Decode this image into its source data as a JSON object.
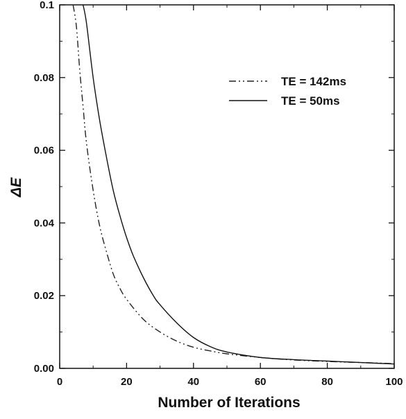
{
  "chart_data": {
    "type": "line",
    "title": "",
    "xlabel": "Number of Iterations",
    "ylabel": "ΔE",
    "xlim": [
      0,
      100
    ],
    "ylim": [
      0,
      0.1
    ],
    "xticks": [
      0,
      20,
      40,
      60,
      80,
      100
    ],
    "xtick_labels": [
      "0",
      "20",
      "40",
      "60",
      "80",
      "100"
    ],
    "yticks": [
      0,
      0.02,
      0.04,
      0.06,
      0.08,
      0.1
    ],
    "ytick_labels": [
      "0.00",
      "0.02",
      "0.04",
      "0.06",
      "0.08",
      "0.1"
    ],
    "grid": false,
    "legend_position": "top-right",
    "series": [
      {
        "name": "TE = 142ms",
        "style": "dash-dot",
        "color": "#222222",
        "x": [
          4,
          5,
          6,
          7,
          8,
          10,
          12,
          14,
          16,
          18,
          20,
          25,
          30,
          35,
          40,
          45,
          50,
          60,
          70,
          80,
          90,
          100
        ],
        "y": [
          0.1,
          0.094,
          0.082,
          0.072,
          0.062,
          0.049,
          0.039,
          0.032,
          0.026,
          0.022,
          0.019,
          0.0135,
          0.01,
          0.0075,
          0.0058,
          0.0048,
          0.004,
          0.003,
          0.0023,
          0.0019,
          0.0016,
          0.0013
        ]
      },
      {
        "name": "TE = 50ms",
        "style": "solid",
        "color": "#111111",
        "x": [
          7,
          8,
          10,
          12,
          14,
          16,
          18,
          20,
          22,
          25,
          28,
          30,
          35,
          40,
          45,
          50,
          60,
          70,
          80,
          90,
          100
        ],
        "y": [
          0.1,
          0.095,
          0.08,
          0.068,
          0.058,
          0.049,
          0.042,
          0.036,
          0.031,
          0.025,
          0.02,
          0.0175,
          0.0125,
          0.0085,
          0.006,
          0.0045,
          0.003,
          0.0024,
          0.002,
          0.0016,
          0.0012
        ]
      }
    ]
  }
}
